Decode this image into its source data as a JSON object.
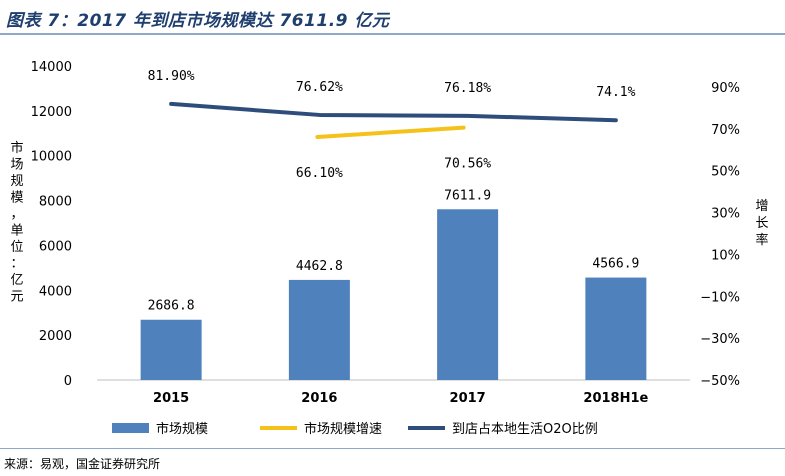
{
  "header": {
    "title": "图表 7：2017 年到店市场规模达 7611.9 亿元"
  },
  "footer": {
    "source": "来源：易观，国金证券研究所"
  },
  "chart_data": {
    "type": "bar",
    "categories": [
      "2015",
      "2016",
      "2017",
      "2018H1e"
    ],
    "ylabel": "市场规模，单位：亿元",
    "y2label": "增长率",
    "ylim": [
      0,
      14000
    ],
    "y2lim": [
      -50,
      100
    ],
    "yticks": [
      "0",
      "2000",
      "4000",
      "6000",
      "8000",
      "10000",
      "12000",
      "14000"
    ],
    "y2ticks": [
      "−50%",
      "−30%",
      "−10%",
      "10%",
      "30%",
      "50%",
      "70%",
      "90%"
    ],
    "grid": false,
    "legend": "bottom",
    "series": [
      {
        "name": "市场规模",
        "kind": "bar",
        "axis": "left",
        "color": "#4f81bd",
        "values": [
          2686.8,
          4462.8,
          7611.9,
          4566.9
        ],
        "labels": [
          "2686.8",
          "4462.8",
          "7611.9",
          "4566.9"
        ]
      },
      {
        "name": "市场规模增速",
        "kind": "line",
        "axis": "right",
        "color": "#f5c21a",
        "values": [
          null,
          66.1,
          70.56,
          null
        ],
        "labels": [
          "",
          "66.10%",
          "70.56%",
          ""
        ]
      },
      {
        "name": "到店占本地生活O2O比例",
        "kind": "line",
        "axis": "right",
        "color": "#2e4d7b",
        "values": [
          81.9,
          76.62,
          76.18,
          74.1
        ],
        "labels": [
          "81.90%",
          "76.62%",
          "76.18%",
          "74.1%"
        ]
      }
    ]
  }
}
